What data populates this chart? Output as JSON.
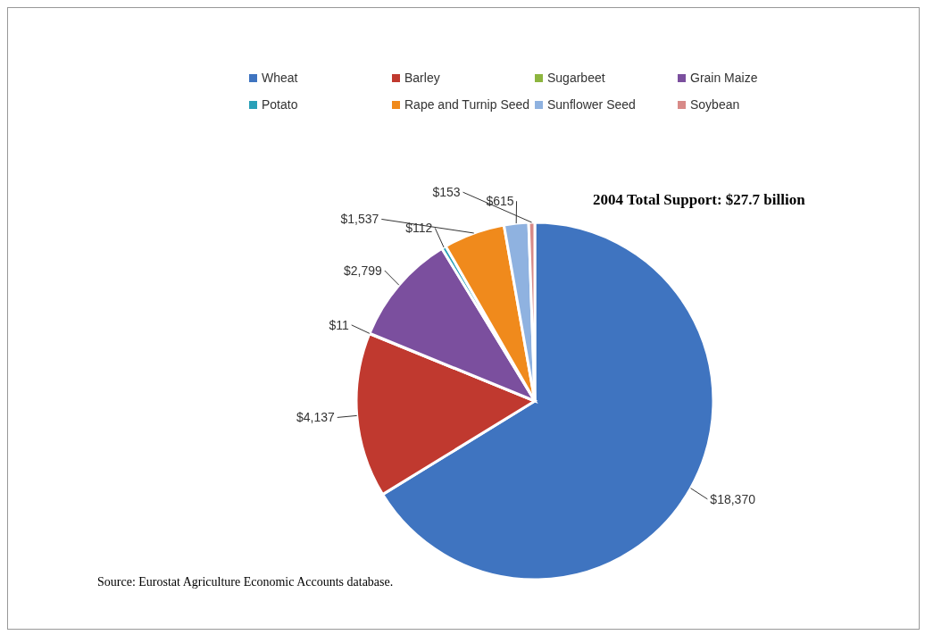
{
  "chart_data": {
    "type": "pie",
    "title": "2004 Total Support: $27.7 billion",
    "categories": [
      "Wheat",
      "Barley",
      "Sugarbeet",
      "Grain Maize",
      "Potato",
      "Rape and Turnip Seed",
      "Sunflower Seed",
      "Soybean"
    ],
    "values": [
      18370,
      4137,
      11,
      2799,
      112,
      1537,
      615,
      153
    ],
    "colors": [
      "#3f74c0",
      "#c0392f",
      "#8db53f",
      "#7b4f9e",
      "#2aa0b8",
      "#f08a1c",
      "#8fb2e0",
      "#d88a88"
    ],
    "value_labels": [
      "$18,370",
      "$4,137",
      "$11",
      "$2,799",
      "$112",
      "$1,537",
      "$615",
      "$153"
    ],
    "legend": "top",
    "annotations": [
      "Source: Eurostat Agriculture Economic Accounts database."
    ]
  }
}
